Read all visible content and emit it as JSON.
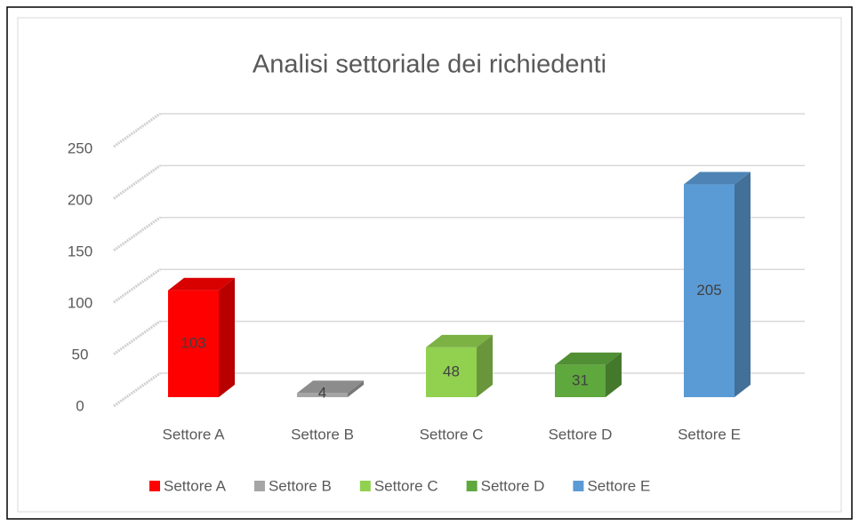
{
  "chart_data": {
    "type": "bar3d",
    "title": "Analisi settoriale dei richiedenti",
    "categories": [
      "Settore A",
      "Settore B",
      "Settore C",
      "Settore D",
      "Settore E"
    ],
    "values": [
      103,
      4,
      48,
      31,
      205
    ],
    "colors": [
      "#ff0000",
      "#a5a5a5",
      "#92d050",
      "#5fa83d",
      "#5b9bd5"
    ],
    "ylim": [
      0,
      250
    ],
    "yticks": [
      0,
      50,
      100,
      150,
      200,
      250
    ],
    "grid": true,
    "legend": "bottom"
  }
}
